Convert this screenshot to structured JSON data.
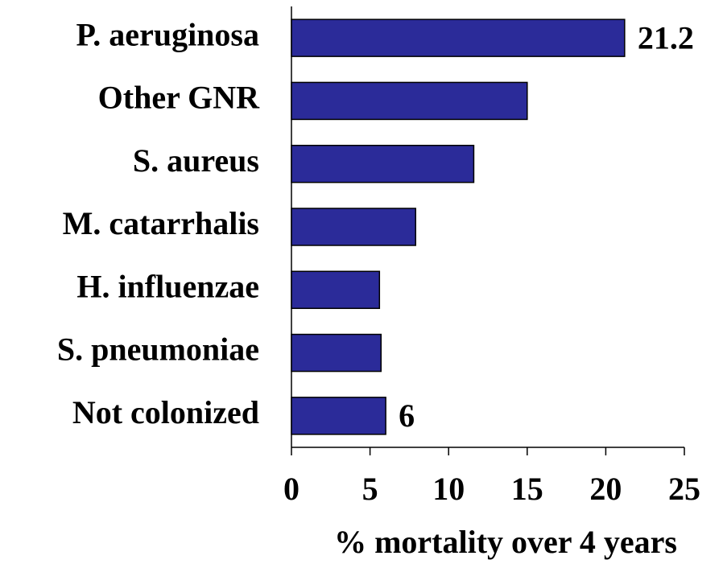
{
  "chart_data": {
    "type": "bar",
    "orientation": "horizontal",
    "categories": [
      "P. aeruginosa",
      "Other GNR",
      "S. aureus",
      "M. catarrhalis",
      "H. influenzae",
      "S. pneumoniae",
      "Not colonized"
    ],
    "values": [
      21.2,
      15.0,
      11.6,
      7.9,
      5.6,
      5.7,
      6.0
    ],
    "value_labels": [
      "21.2",
      null,
      null,
      null,
      null,
      null,
      "6"
    ],
    "color": "#2b2b99",
    "xlabel": "% mortality over 4 years",
    "xlim": [
      0,
      25
    ],
    "xticks": [
      0,
      5,
      10,
      15,
      20,
      25
    ],
    "grid": false
  }
}
